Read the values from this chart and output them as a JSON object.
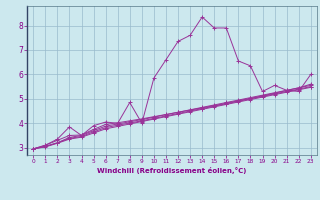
{
  "xlabel": "Windchill (Refroidissement éolien,°C)",
  "bg_color": "#cce8ee",
  "line_color": "#993399",
  "grid_color": "#99bbcc",
  "xlim": [
    -0.5,
    23.5
  ],
  "ylim": [
    2.7,
    8.8
  ],
  "xticks": [
    0,
    1,
    2,
    3,
    4,
    5,
    6,
    7,
    8,
    9,
    10,
    11,
    12,
    13,
    14,
    15,
    16,
    17,
    18,
    19,
    20,
    21,
    22,
    23
  ],
  "yticks": [
    3,
    4,
    5,
    6,
    7,
    8
  ],
  "series": [
    [
      2.95,
      3.1,
      3.35,
      3.85,
      3.5,
      3.9,
      4.05,
      4.0,
      4.85,
      4.0,
      5.85,
      6.6,
      7.35,
      7.6,
      8.35,
      7.9,
      7.9,
      6.55,
      6.35,
      5.3,
      5.55,
      5.35,
      5.3,
      6.0
    ],
    [
      2.95,
      3.1,
      3.3,
      3.5,
      3.52,
      3.75,
      3.95,
      4.02,
      4.1,
      4.18,
      4.27,
      4.36,
      4.45,
      4.54,
      4.63,
      4.72,
      4.82,
      4.92,
      5.02,
      5.12,
      5.23,
      5.34,
      5.45,
      5.6
    ],
    [
      2.95,
      3.05,
      3.2,
      3.42,
      3.5,
      3.7,
      3.88,
      3.97,
      4.06,
      4.15,
      4.25,
      4.35,
      4.45,
      4.55,
      4.65,
      4.75,
      4.85,
      4.95,
      5.05,
      5.15,
      5.25,
      5.35,
      5.45,
      5.55
    ],
    [
      2.95,
      3.05,
      3.2,
      3.38,
      3.46,
      3.65,
      3.82,
      3.92,
      4.01,
      4.1,
      4.2,
      4.3,
      4.4,
      4.5,
      4.6,
      4.7,
      4.8,
      4.9,
      5.0,
      5.1,
      5.2,
      5.3,
      5.4,
      5.5
    ],
    [
      2.95,
      3.03,
      3.18,
      3.35,
      3.43,
      3.6,
      3.77,
      3.87,
      3.97,
      4.07,
      4.17,
      4.27,
      4.37,
      4.47,
      4.57,
      4.67,
      4.77,
      4.87,
      4.97,
      5.07,
      5.17,
      5.27,
      5.37,
      5.47
    ]
  ]
}
